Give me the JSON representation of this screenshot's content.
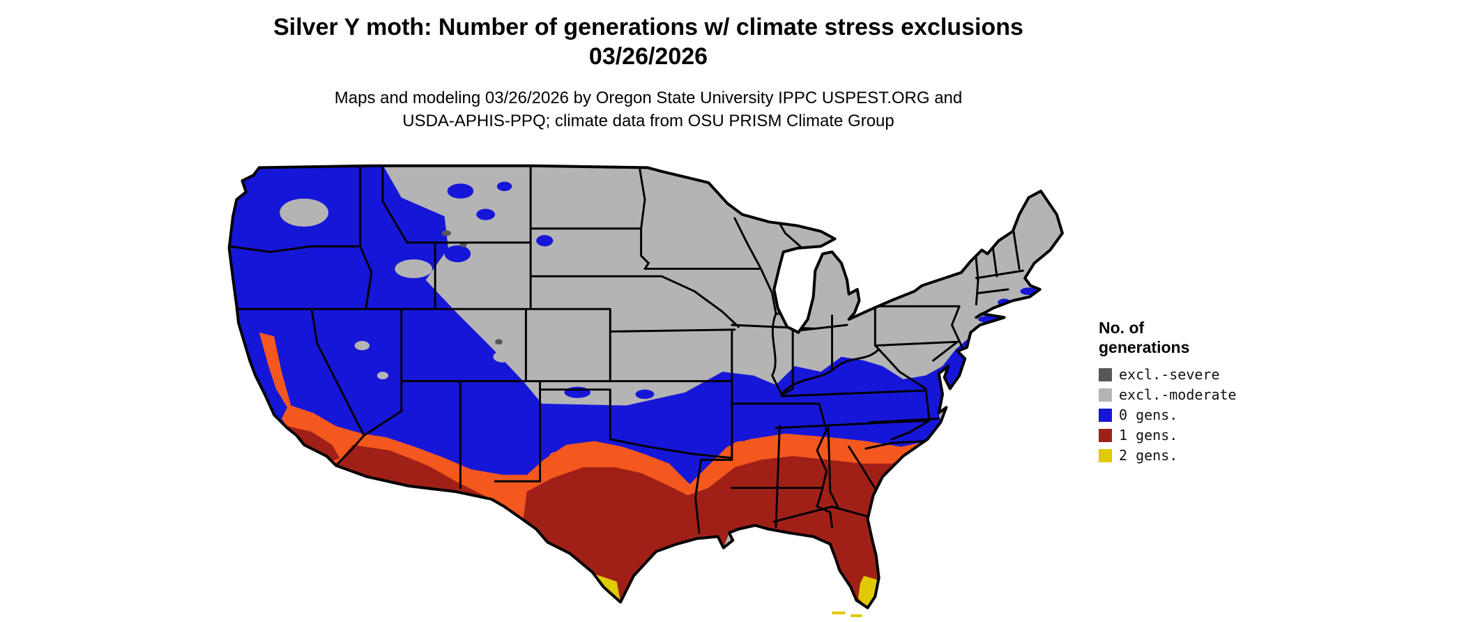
{
  "header": {
    "title_line1": "Silver Y moth: Number of generations w/ climate stress exclusions",
    "title_line2": "03/26/2026",
    "subtitle_line1": "Maps and modeling 03/26/2026 by Oregon State University IPPC USPEST.ORG and",
    "subtitle_line2": "USDA-APHIS-PPQ; climate data from OSU PRISM Climate Group"
  },
  "legend": {
    "title_line1": "No. of",
    "title_line2": "generations",
    "items": [
      {
        "label": "excl.-severe",
        "color": "#575757"
      },
      {
        "label": "excl.-moderate",
        "color": "#b4b4b4"
      },
      {
        "label": "0 gens.",
        "color": "#1616d9"
      },
      {
        "label": "1 gens.",
        "color": "#a02018"
      },
      {
        "label": "2 gens.",
        "color": "#e0ca00"
      }
    ]
  },
  "map": {
    "region": "Contiguous United States",
    "colors": {
      "excl_severe": "#575757",
      "excl_moderate": "#b4b4b4",
      "gens0": "#1616d9",
      "gens1": "#a02018",
      "gens1_transition": "#f4581e",
      "gens2": "#e0ca00",
      "border": "#000000",
      "water": "#ffffff"
    }
  }
}
